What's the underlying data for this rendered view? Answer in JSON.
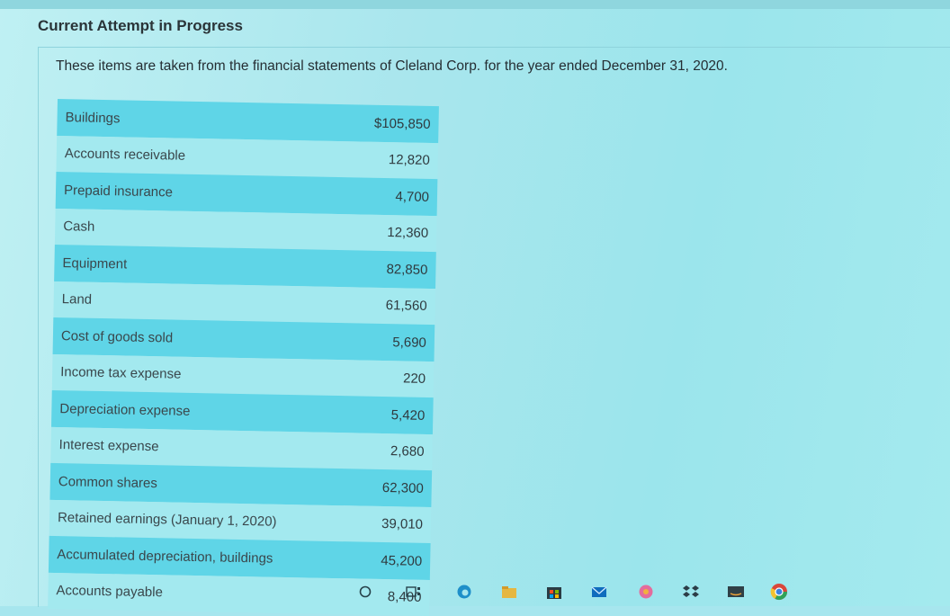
{
  "header": {
    "attempt_title": "Current Attempt in Progress"
  },
  "question": {
    "intro": "These items are taken from the financial statements of Cleland Corp. for the year ended December 31, 2020."
  },
  "table": {
    "rows": [
      {
        "label": "Buildings",
        "amount": "$105,850"
      },
      {
        "label": "Accounts receivable",
        "amount": "12,820"
      },
      {
        "label": "Prepaid insurance",
        "amount": "4,700"
      },
      {
        "label": "Cash",
        "amount": "12,360"
      },
      {
        "label": "Equipment",
        "amount": "82,850"
      },
      {
        "label": "Land",
        "amount": "61,560"
      },
      {
        "label": "Cost of goods sold",
        "amount": "5,690"
      },
      {
        "label": "Income tax expense",
        "amount": "220"
      },
      {
        "label": "Depreciation expense",
        "amount": "5,420"
      },
      {
        "label": "Interest expense",
        "amount": "2,680"
      },
      {
        "label": "Common shares",
        "amount": "62,300"
      },
      {
        "label": "Retained earnings (January 1, 2020)",
        "amount": "39,010"
      },
      {
        "label": "Accumulated depreciation, buildings",
        "amount": "45,200"
      },
      {
        "label": "Accounts payable",
        "amount": "8,400"
      }
    ]
  },
  "taskbar": {
    "icons": [
      "search-icon",
      "task-view-icon",
      "edge-icon",
      "file-explorer-icon",
      "store-icon",
      "mail-icon",
      "photos-icon",
      "dropbox-icon",
      "amazon-icon",
      "chrome-icon"
    ]
  },
  "colors": {
    "row_shade": "#5fd5e7",
    "row_plain": "#a3e9ef",
    "page_bg": "#a7e6ee"
  }
}
